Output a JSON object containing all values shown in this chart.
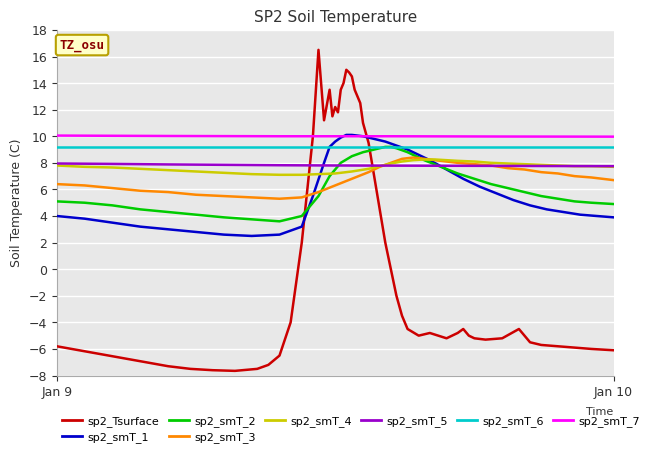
{
  "title": "SP2 Soil Temperature",
  "xlabel": "Time",
  "ylabel": "Soil Temperature (C)",
  "xlim": [
    0,
    1
  ],
  "ylim": [
    -8,
    18
  ],
  "yticks": [
    -8,
    -6,
    -4,
    -2,
    0,
    2,
    4,
    6,
    8,
    10,
    12,
    14,
    16,
    18
  ],
  "x_tick_labels": [
    "Jan 9",
    "Jan 10"
  ],
  "annotation_text": "TZ_osu",
  "annotation_color": "#8b0000",
  "annotation_bg": "#ffffc8",
  "annotation_border": "#b8a000",
  "series": {
    "sp2_Tsurface": {
      "color": "#cc0000",
      "points": [
        [
          0.0,
          -5.8
        ],
        [
          0.04,
          -6.1
        ],
        [
          0.08,
          -6.4
        ],
        [
          0.12,
          -6.7
        ],
        [
          0.16,
          -7.0
        ],
        [
          0.2,
          -7.3
        ],
        [
          0.24,
          -7.5
        ],
        [
          0.28,
          -7.6
        ],
        [
          0.32,
          -7.65
        ],
        [
          0.36,
          -7.5
        ],
        [
          0.38,
          -7.2
        ],
        [
          0.4,
          -6.5
        ],
        [
          0.42,
          -4.0
        ],
        [
          0.44,
          2.0
        ],
        [
          0.46,
          10.0
        ],
        [
          0.47,
          16.5
        ],
        [
          0.48,
          11.2
        ],
        [
          0.49,
          13.5
        ],
        [
          0.495,
          11.5
        ],
        [
          0.5,
          12.2
        ],
        [
          0.505,
          11.8
        ],
        [
          0.51,
          13.5
        ],
        [
          0.515,
          14.0
        ],
        [
          0.52,
          15.0
        ],
        [
          0.525,
          14.8
        ],
        [
          0.53,
          14.5
        ],
        [
          0.535,
          13.5
        ],
        [
          0.54,
          13.0
        ],
        [
          0.545,
          12.5
        ],
        [
          0.55,
          11.0
        ],
        [
          0.56,
          9.5
        ],
        [
          0.57,
          7.0
        ],
        [
          0.58,
          4.5
        ],
        [
          0.59,
          2.0
        ],
        [
          0.6,
          0.0
        ],
        [
          0.61,
          -2.0
        ],
        [
          0.62,
          -3.5
        ],
        [
          0.63,
          -4.5
        ],
        [
          0.65,
          -5.0
        ],
        [
          0.67,
          -4.8
        ],
        [
          0.7,
          -5.2
        ],
        [
          0.72,
          -4.8
        ],
        [
          0.73,
          -4.5
        ],
        [
          0.74,
          -5.0
        ],
        [
          0.75,
          -5.2
        ],
        [
          0.77,
          -5.3
        ],
        [
          0.8,
          -5.2
        ],
        [
          0.83,
          -4.5
        ],
        [
          0.85,
          -5.5
        ],
        [
          0.87,
          -5.7
        ],
        [
          0.9,
          -5.8
        ],
        [
          0.93,
          -5.9
        ],
        [
          0.96,
          -6.0
        ],
        [
          1.0,
          -6.1
        ]
      ]
    },
    "sp2_smT_1": {
      "color": "#0000cc",
      "points": [
        [
          0.0,
          4.0
        ],
        [
          0.05,
          3.8
        ],
        [
          0.1,
          3.5
        ],
        [
          0.15,
          3.2
        ],
        [
          0.2,
          3.0
        ],
        [
          0.25,
          2.8
        ],
        [
          0.3,
          2.6
        ],
        [
          0.35,
          2.5
        ],
        [
          0.4,
          2.6
        ],
        [
          0.44,
          3.2
        ],
        [
          0.46,
          5.5
        ],
        [
          0.48,
          8.0
        ],
        [
          0.49,
          9.2
        ],
        [
          0.5,
          9.6
        ],
        [
          0.51,
          9.9
        ],
        [
          0.52,
          10.1
        ],
        [
          0.53,
          10.1
        ],
        [
          0.55,
          10.0
        ],
        [
          0.57,
          9.8
        ],
        [
          0.59,
          9.6
        ],
        [
          0.61,
          9.3
        ],
        [
          0.63,
          9.0
        ],
        [
          0.67,
          8.2
        ],
        [
          0.7,
          7.5
        ],
        [
          0.73,
          6.8
        ],
        [
          0.76,
          6.2
        ],
        [
          0.79,
          5.7
        ],
        [
          0.82,
          5.2
        ],
        [
          0.85,
          4.8
        ],
        [
          0.88,
          4.5
        ],
        [
          0.91,
          4.3
        ],
        [
          0.94,
          4.1
        ],
        [
          0.97,
          4.0
        ],
        [
          1.0,
          3.9
        ]
      ]
    },
    "sp2_smT_2": {
      "color": "#00cc00",
      "points": [
        [
          0.0,
          5.1
        ],
        [
          0.05,
          5.0
        ],
        [
          0.1,
          4.8
        ],
        [
          0.15,
          4.5
        ],
        [
          0.2,
          4.3
        ],
        [
          0.25,
          4.1
        ],
        [
          0.3,
          3.9
        ],
        [
          0.35,
          3.75
        ],
        [
          0.4,
          3.6
        ],
        [
          0.44,
          4.0
        ],
        [
          0.47,
          5.5
        ],
        [
          0.49,
          7.0
        ],
        [
          0.51,
          8.0
        ],
        [
          0.53,
          8.5
        ],
        [
          0.55,
          8.8
        ],
        [
          0.57,
          9.0
        ],
        [
          0.59,
          9.2
        ],
        [
          0.6,
          9.2
        ],
        [
          0.61,
          9.1
        ],
        [
          0.63,
          8.8
        ],
        [
          0.66,
          8.2
        ],
        [
          0.69,
          7.7
        ],
        [
          0.72,
          7.2
        ],
        [
          0.75,
          6.8
        ],
        [
          0.78,
          6.4
        ],
        [
          0.81,
          6.1
        ],
        [
          0.84,
          5.8
        ],
        [
          0.87,
          5.5
        ],
        [
          0.9,
          5.3
        ],
        [
          0.93,
          5.1
        ],
        [
          0.96,
          5.0
        ],
        [
          1.0,
          4.9
        ]
      ]
    },
    "sp2_smT_3": {
      "color": "#ff8800",
      "points": [
        [
          0.0,
          6.4
        ],
        [
          0.05,
          6.3
        ],
        [
          0.1,
          6.1
        ],
        [
          0.15,
          5.9
        ],
        [
          0.2,
          5.8
        ],
        [
          0.25,
          5.6
        ],
        [
          0.3,
          5.5
        ],
        [
          0.35,
          5.4
        ],
        [
          0.4,
          5.3
        ],
        [
          0.44,
          5.4
        ],
        [
          0.47,
          5.8
        ],
        [
          0.5,
          6.3
        ],
        [
          0.53,
          6.8
        ],
        [
          0.56,
          7.3
        ],
        [
          0.58,
          7.7
        ],
        [
          0.6,
          8.0
        ],
        [
          0.62,
          8.3
        ],
        [
          0.64,
          8.4
        ],
        [
          0.66,
          8.3
        ],
        [
          0.68,
          8.2
        ],
        [
          0.7,
          8.1
        ],
        [
          0.72,
          8.0
        ],
        [
          0.75,
          7.9
        ],
        [
          0.78,
          7.8
        ],
        [
          0.81,
          7.6
        ],
        [
          0.84,
          7.5
        ],
        [
          0.87,
          7.3
        ],
        [
          0.9,
          7.2
        ],
        [
          0.93,
          7.0
        ],
        [
          0.96,
          6.9
        ],
        [
          1.0,
          6.7
        ]
      ]
    },
    "sp2_smT_4": {
      "color": "#cccc00",
      "points": [
        [
          0.0,
          7.8
        ],
        [
          0.05,
          7.7
        ],
        [
          0.1,
          7.65
        ],
        [
          0.15,
          7.55
        ],
        [
          0.2,
          7.45
        ],
        [
          0.25,
          7.35
        ],
        [
          0.3,
          7.25
        ],
        [
          0.35,
          7.15
        ],
        [
          0.4,
          7.1
        ],
        [
          0.44,
          7.1
        ],
        [
          0.47,
          7.15
        ],
        [
          0.5,
          7.2
        ],
        [
          0.53,
          7.35
        ],
        [
          0.56,
          7.55
        ],
        [
          0.58,
          7.75
        ],
        [
          0.6,
          7.95
        ],
        [
          0.62,
          8.1
        ],
        [
          0.64,
          8.2
        ],
        [
          0.66,
          8.25
        ],
        [
          0.68,
          8.25
        ],
        [
          0.7,
          8.2
        ],
        [
          0.72,
          8.15
        ],
        [
          0.75,
          8.1
        ],
        [
          0.78,
          8.0
        ],
        [
          0.81,
          7.95
        ],
        [
          0.84,
          7.9
        ],
        [
          0.87,
          7.85
        ],
        [
          0.9,
          7.8
        ],
        [
          0.93,
          7.75
        ],
        [
          0.96,
          7.75
        ],
        [
          1.0,
          7.7
        ]
      ]
    },
    "sp2_smT_5": {
      "color": "#9900cc",
      "points": [
        [
          0.0,
          7.95
        ],
        [
          0.1,
          7.92
        ],
        [
          0.2,
          7.88
        ],
        [
          0.3,
          7.85
        ],
        [
          0.4,
          7.82
        ],
        [
          0.5,
          7.8
        ],
        [
          0.6,
          7.79
        ],
        [
          0.7,
          7.78
        ],
        [
          0.8,
          7.77
        ],
        [
          0.9,
          7.76
        ],
        [
          1.0,
          7.75
        ]
      ]
    },
    "sp2_smT_6": {
      "color": "#00cccc",
      "points": [
        [
          0.0,
          9.2
        ],
        [
          0.2,
          9.2
        ],
        [
          0.4,
          9.2
        ],
        [
          0.6,
          9.2
        ],
        [
          0.8,
          9.2
        ],
        [
          1.0,
          9.2
        ]
      ]
    },
    "sp2_smT_7": {
      "color": "#ff00ff",
      "points": [
        [
          0.0,
          10.05
        ],
        [
          0.2,
          10.02
        ],
        [
          0.4,
          10.0
        ],
        [
          0.6,
          10.0
        ],
        [
          0.8,
          9.98
        ],
        [
          1.0,
          9.97
        ]
      ]
    }
  },
  "legend_order": [
    "sp2_Tsurface",
    "sp2_smT_1",
    "sp2_smT_2",
    "sp2_smT_3",
    "sp2_smT_4",
    "sp2_smT_5",
    "sp2_smT_6",
    "sp2_smT_7"
  ],
  "plot_bg_color": "#e8e8e8",
  "fig_bg_color": "#ffffff",
  "grid_color": "#ffffff",
  "spine_color": "#aaaaaa"
}
